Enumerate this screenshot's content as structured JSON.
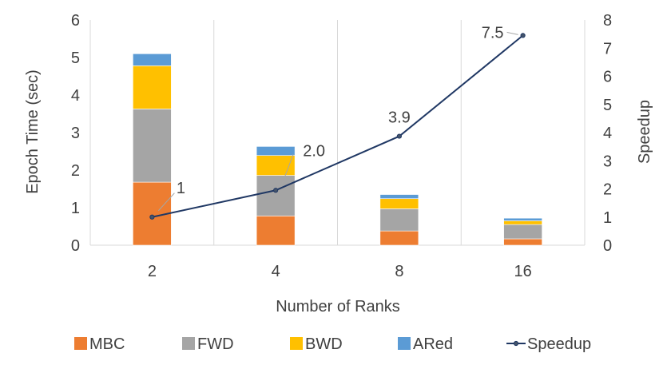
{
  "chart_data": {
    "type": "bar",
    "stacked": true,
    "categories": [
      "2",
      "4",
      "8",
      "16"
    ],
    "xlabel": "Number of Ranks",
    "ylabel": "Epoch Time (sec)",
    "y2label": "Speedup",
    "ylim": [
      0,
      6
    ],
    "y2lim": [
      0,
      8
    ],
    "yticks": [
      "0",
      "1",
      "2",
      "3",
      "4",
      "5",
      "6"
    ],
    "y2ticks": [
      "0",
      "1",
      "2",
      "3",
      "4",
      "5",
      "6",
      "7",
      "8"
    ],
    "grid": "vertical",
    "series": [
      {
        "name": "MBC",
        "color": "#ED7D31",
        "values": [
          1.68,
          0.78,
          0.38,
          0.17
        ]
      },
      {
        "name": "FWD",
        "color": "#A5A5A5",
        "values": [
          1.95,
          1.08,
          0.59,
          0.38
        ]
      },
      {
        "name": "BWD",
        "color": "#FFC000",
        "values": [
          1.15,
          0.53,
          0.27,
          0.1
        ]
      },
      {
        "name": "ARed",
        "color": "#5B9BD5",
        "values": [
          0.32,
          0.24,
          0.11,
          0.07
        ]
      }
    ],
    "line_series": {
      "name": "Speedup",
      "color": "#203864",
      "axis": "secondary",
      "values": [
        1.0,
        1.95,
        3.87,
        7.45
      ],
      "labels": [
        "1",
        "2.0",
        "3.9",
        "7.5"
      ]
    },
    "legend_position": "bottom"
  }
}
